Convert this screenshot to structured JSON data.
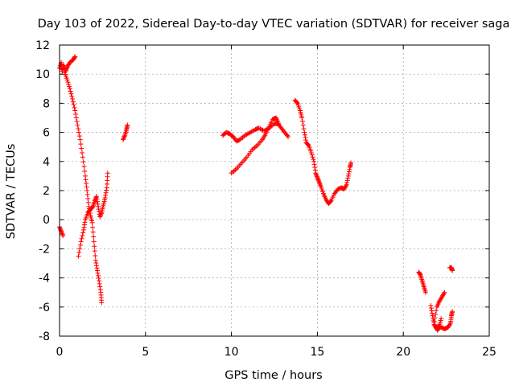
{
  "chart_data": {
    "type": "scatter",
    "title": "Day 103 of 2022, Sidereal Day-to-day VTEC variation (SDTVAR) for receiver saga",
    "xlabel": "GPS time / hours",
    "ylabel": "SDTVAR / TECUs",
    "xlim": [
      0,
      25
    ],
    "ylim": [
      -8,
      12
    ],
    "xticks": [
      0,
      5,
      10,
      15,
      20,
      25
    ],
    "yticks": [
      -8,
      -6,
      -4,
      -2,
      0,
      2,
      4,
      6,
      8,
      10,
      12
    ],
    "grid": true,
    "marker": "+",
    "color": "#ff0000",
    "series": [
      {
        "name": "SDTVAR",
        "segments": [
          [
            [
              0.0,
              -0.5
            ],
            [
              0.1,
              -0.8
            ],
            [
              0.2,
              -1.1
            ]
          ],
          [
            [
              0.0,
              10.4
            ],
            [
              0.1,
              10.8
            ],
            [
              0.15,
              10.2
            ],
            [
              0.25,
              10.6
            ],
            [
              0.35,
              10.2
            ],
            [
              0.45,
              10.5
            ],
            [
              0.6,
              10.8
            ],
            [
              0.8,
              11.0
            ],
            [
              0.9,
              11.2
            ]
          ],
          [
            [
              0.3,
              10.1
            ],
            [
              0.45,
              9.6
            ],
            [
              0.6,
              9.0
            ],
            [
              0.75,
              8.3
            ],
            [
              0.9,
              7.5
            ],
            [
              1.05,
              6.5
            ],
            [
              1.2,
              5.5
            ],
            [
              1.35,
              4.3
            ],
            [
              1.5,
              3.0
            ],
            [
              1.6,
              2.0
            ],
            [
              1.7,
              0.9
            ],
            [
              1.8,
              0.3
            ],
            [
              1.9,
              -0.2
            ],
            [
              2.0,
              -1.5
            ],
            [
              2.1,
              -2.8
            ],
            [
              2.2,
              -3.5
            ],
            [
              2.3,
              -4.2
            ],
            [
              2.4,
              -5.0
            ],
            [
              2.45,
              -5.7
            ]
          ],
          [
            [
              1.1,
              -2.5
            ],
            [
              1.25,
              -1.5
            ],
            [
              1.4,
              -0.7
            ],
            [
              1.5,
              0.0
            ],
            [
              1.65,
              0.5
            ],
            [
              1.8,
              0.7
            ],
            [
              1.95,
              0.9
            ],
            [
              2.05,
              1.3
            ],
            [
              2.15,
              1.6
            ],
            [
              2.25,
              0.9
            ],
            [
              2.35,
              0.2
            ],
            [
              2.45,
              0.5
            ],
            [
              2.55,
              1.0
            ],
            [
              2.65,
              1.5
            ],
            [
              2.75,
              2.2
            ],
            [
              2.8,
              3.2
            ]
          ],
          [
            [
              3.7,
              5.5
            ],
            [
              3.8,
              5.8
            ],
            [
              3.9,
              6.2
            ],
            [
              3.95,
              6.5
            ]
          ],
          [
            [
              9.5,
              5.8
            ],
            [
              9.7,
              6.0
            ],
            [
              9.9,
              5.9
            ],
            [
              10.1,
              5.7
            ],
            [
              10.3,
              5.4
            ],
            [
              10.5,
              5.5
            ],
            [
              10.8,
              5.8
            ],
            [
              11.1,
              6.0
            ],
            [
              11.4,
              6.2
            ],
            [
              11.6,
              6.3
            ],
            [
              11.9,
              6.1
            ],
            [
              12.2,
              6.3
            ],
            [
              12.5,
              6.6
            ],
            [
              12.7,
              6.6
            ],
            [
              12.9,
              6.3
            ],
            [
              13.1,
              6.0
            ],
            [
              13.3,
              5.7
            ]
          ],
          [
            [
              10.0,
              3.2
            ],
            [
              10.3,
              3.5
            ],
            [
              10.6,
              3.9
            ],
            [
              10.9,
              4.3
            ],
            [
              11.2,
              4.8
            ],
            [
              11.5,
              5.1
            ],
            [
              11.8,
              5.5
            ],
            [
              12.0,
              5.9
            ],
            [
              12.2,
              6.4
            ],
            [
              12.4,
              6.9
            ],
            [
              12.6,
              7.0
            ],
            [
              12.75,
              6.6
            ]
          ],
          [
            [
              13.7,
              8.2
            ],
            [
              13.85,
              8.0
            ],
            [
              14.0,
              7.5
            ],
            [
              14.1,
              7.0
            ],
            [
              14.25,
              6.0
            ],
            [
              14.35,
              5.3
            ],
            [
              14.5,
              5.1
            ],
            [
              14.65,
              4.6
            ],
            [
              14.8,
              4.0
            ],
            [
              14.9,
              3.2
            ],
            [
              15.0,
              2.9
            ],
            [
              15.1,
              2.6
            ],
            [
              15.2,
              2.3
            ],
            [
              15.35,
              1.8
            ],
            [
              15.5,
              1.4
            ],
            [
              15.65,
              1.1
            ],
            [
              15.8,
              1.3
            ],
            [
              16.0,
              1.8
            ],
            [
              16.2,
              2.1
            ],
            [
              16.4,
              2.2
            ],
            [
              16.55,
              2.1
            ],
            [
              16.7,
              2.4
            ],
            [
              16.8,
              3.0
            ],
            [
              16.9,
              3.6
            ],
            [
              16.95,
              3.9
            ]
          ],
          [
            [
              20.9,
              -3.6
            ],
            [
              21.0,
              -3.8
            ],
            [
              21.1,
              -4.2
            ],
            [
              21.2,
              -4.6
            ],
            [
              21.3,
              -5.0
            ]
          ],
          [
            [
              21.6,
              -5.9
            ],
            [
              21.7,
              -6.6
            ],
            [
              21.8,
              -7.2
            ],
            [
              21.9,
              -7.4
            ],
            [
              22.0,
              -7.6
            ],
            [
              22.1,
              -7.3
            ],
            [
              22.2,
              -6.8
            ]
          ],
          [
            [
              21.8,
              -7.0
            ],
            [
              21.95,
              -6.0
            ],
            [
              22.1,
              -5.6
            ],
            [
              22.25,
              -5.3
            ],
            [
              22.4,
              -5.0
            ]
          ],
          [
            [
              22.0,
              -7.3
            ],
            [
              22.2,
              -7.4
            ],
            [
              22.4,
              -7.5
            ],
            [
              22.6,
              -7.4
            ],
            [
              22.75,
              -7.1
            ],
            [
              22.8,
              -6.6
            ],
            [
              22.85,
              -6.3
            ]
          ],
          [
            [
              22.7,
              -3.3
            ],
            [
              22.8,
              -3.3
            ],
            [
              22.85,
              -3.5
            ]
          ]
        ]
      }
    ]
  }
}
